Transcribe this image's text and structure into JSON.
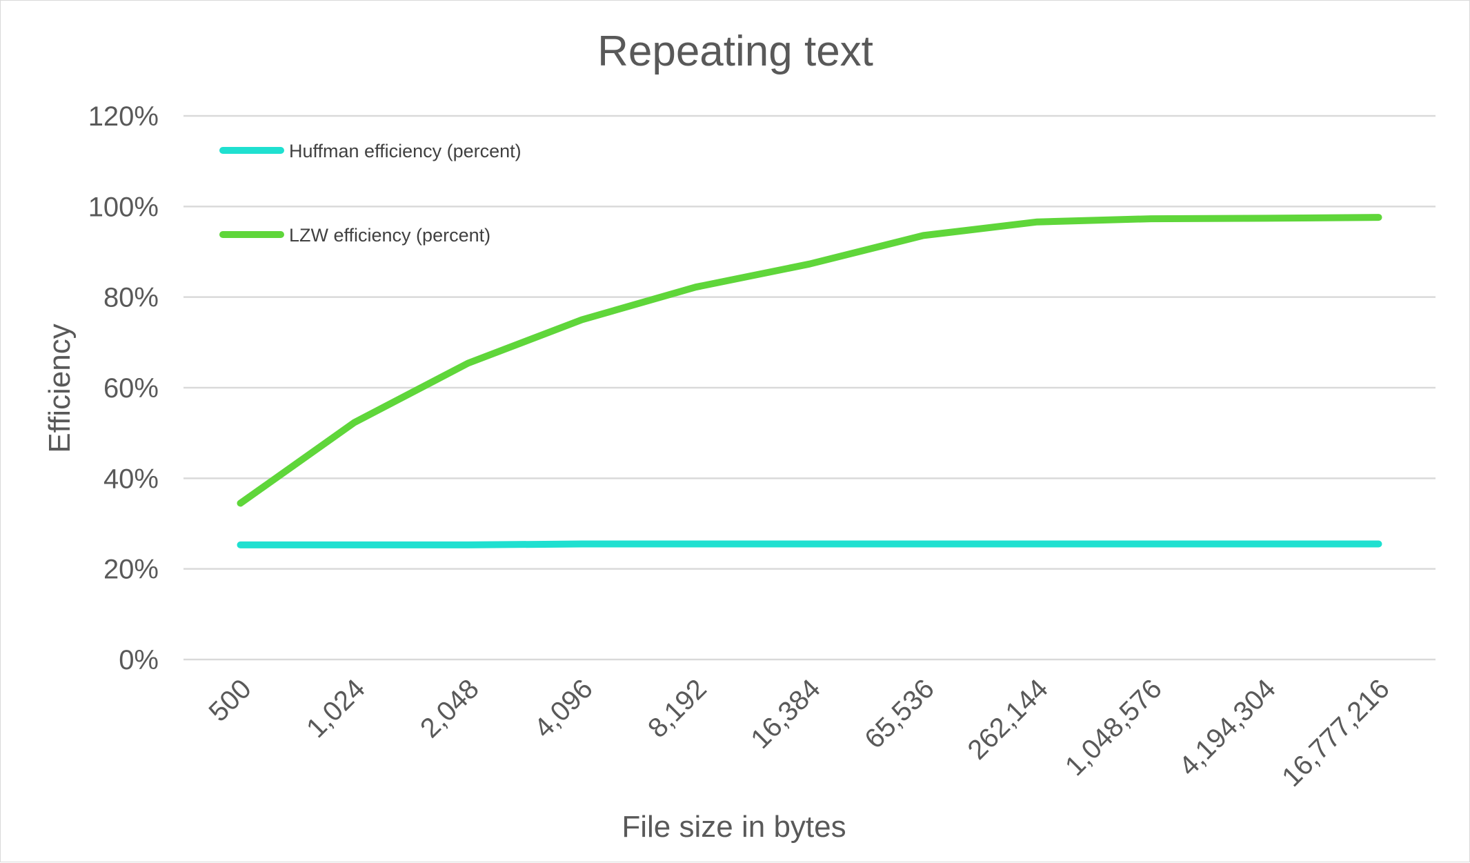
{
  "chart_data": {
    "type": "line",
    "title": "Repeating text",
    "xlabel": "File size in bytes",
    "ylabel": "Efficiency",
    "categories": [
      "500",
      "1,024",
      "2,048",
      "4,096",
      "8,192",
      "16,384",
      "65,536",
      "262,144",
      "1,048,576",
      "4,194,304",
      "16,777,216"
    ],
    "ylim": [
      0,
      120
    ],
    "yticks": [
      0,
      20,
      40,
      60,
      80,
      100,
      120
    ],
    "ytick_labels": [
      "0%",
      "20%",
      "40%",
      "60%",
      "80%",
      "100%",
      "120%"
    ],
    "grid": true,
    "legend_position": "top-left",
    "series": [
      {
        "name": "Huffman efficiency (percent)",
        "color": "#1fe0d0",
        "values": [
          25.3,
          25.3,
          25.3,
          25.5,
          25.5,
          25.5,
          25.5,
          25.5,
          25.5,
          25.5,
          25.5
        ]
      },
      {
        "name": "LZW efficiency (percent)",
        "color": "#5fd63a",
        "values": [
          34.5,
          52.3,
          65.4,
          75.0,
          82.2,
          87.3,
          93.6,
          96.6,
          97.3,
          97.4,
          97.6
        ]
      }
    ]
  }
}
